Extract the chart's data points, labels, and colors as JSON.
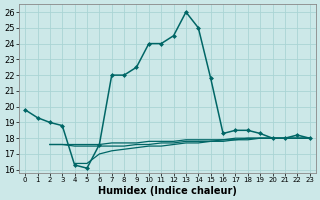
{
  "xlabel": "Humidex (Indice chaleur)",
  "bg_color": "#cce8e8",
  "grid_color": "#aad4d4",
  "line_color": "#006666",
  "xlim": [
    -0.5,
    23.5
  ],
  "ylim": [
    15.8,
    26.5
  ],
  "yticks": [
    16,
    17,
    18,
    19,
    20,
    21,
    22,
    23,
    24,
    25,
    26
  ],
  "xticks": [
    0,
    1,
    2,
    3,
    4,
    5,
    6,
    7,
    8,
    9,
    10,
    11,
    12,
    13,
    14,
    15,
    16,
    17,
    18,
    19,
    20,
    21,
    22,
    23
  ],
  "main_line_x": [
    0,
    1,
    2,
    3,
    4,
    5,
    6,
    7,
    8,
    9,
    10,
    11,
    12,
    13,
    14,
    15,
    16,
    17,
    18,
    19,
    20,
    21,
    22,
    23
  ],
  "main_line_y": [
    19.8,
    19.3,
    19.0,
    18.8,
    16.3,
    16.1,
    17.6,
    22.0,
    22.0,
    22.5,
    24.0,
    24.0,
    24.5,
    26.0,
    25.0,
    21.8,
    18.3,
    18.5,
    18.5,
    18.3,
    18.0,
    18.0,
    18.2,
    18.0
  ],
  "flat1_x": [
    2,
    3,
    4,
    5,
    6,
    7,
    8,
    9,
    10,
    11,
    12,
    13,
    14,
    15,
    16,
    17,
    18,
    19,
    20,
    21,
    22,
    23
  ],
  "flat1_y": [
    17.6,
    17.6,
    17.6,
    17.6,
    17.6,
    17.7,
    17.7,
    17.7,
    17.8,
    17.8,
    17.8,
    17.9,
    17.9,
    17.9,
    17.9,
    18.0,
    18.0,
    18.0,
    18.0,
    18.0,
    18.0,
    18.0
  ],
  "flat2_x": [
    4,
    5,
    6,
    7,
    8,
    9,
    10,
    11,
    12,
    13,
    14,
    15,
    16,
    17,
    18,
    19,
    20,
    21,
    22,
    23
  ],
  "flat2_y": [
    16.4,
    16.4,
    17.0,
    17.2,
    17.3,
    17.4,
    17.5,
    17.5,
    17.6,
    17.7,
    17.7,
    17.8,
    17.8,
    17.9,
    17.9,
    18.0,
    18.0,
    18.0,
    18.0,
    18.0
  ],
  "flat3_x": [
    2,
    3,
    4,
    5,
    6,
    7,
    8,
    9,
    10,
    11,
    12,
    13,
    14,
    15,
    16,
    17,
    18,
    19,
    20,
    21,
    22,
    23
  ],
  "flat3_y": [
    17.6,
    17.6,
    17.5,
    17.5,
    17.5,
    17.5,
    17.5,
    17.6,
    17.6,
    17.7,
    17.7,
    17.8,
    17.8,
    17.8,
    17.9,
    17.9,
    18.0,
    18.0,
    18.0,
    18.0,
    18.0,
    18.0
  ]
}
